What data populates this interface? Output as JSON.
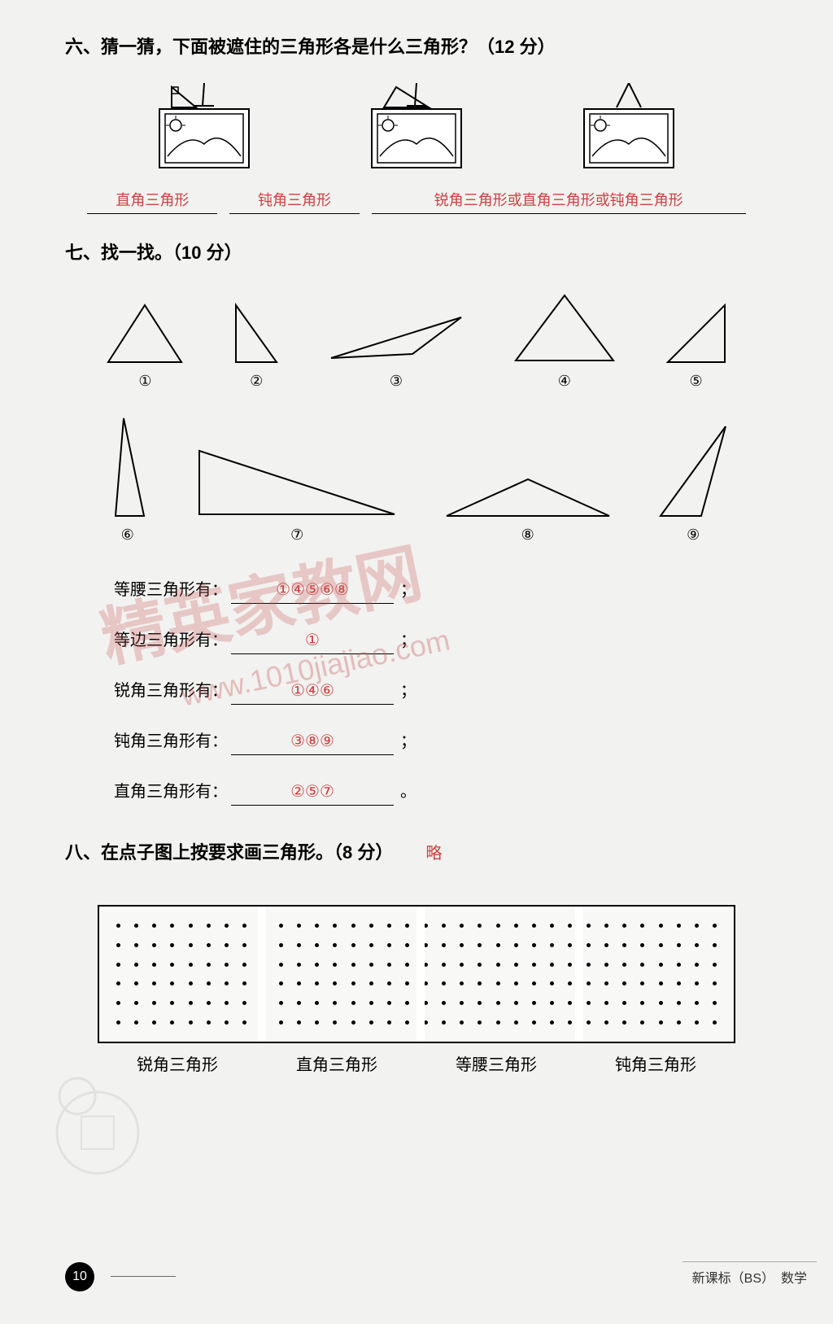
{
  "section6": {
    "heading": "六、猜一猜，下面被遮住的三角形各是什么三角形？（12 分）",
    "answers": [
      "直角三角形",
      "钝角三角形",
      "锐角三角形或直角三角形或钝角三角形"
    ],
    "answer_color": "#d04040"
  },
  "section7": {
    "heading": "七、找一找。（10 分）",
    "triangle_labels_row1": [
      "①",
      "②",
      "③",
      "④",
      "⑤"
    ],
    "triangle_labels_row2": [
      "⑥",
      "⑦",
      "⑧",
      "⑨"
    ],
    "classifications": [
      {
        "label": "等腰三角形有：",
        "answer": "①④⑤⑥⑧",
        "punct": "；"
      },
      {
        "label": "等边三角形有：",
        "answer": "①",
        "punct": "；"
      },
      {
        "label": "锐角三角形有：",
        "answer": "①④⑥",
        "punct": "；"
      },
      {
        "label": "钝角三角形有：",
        "answer": "③⑧⑨",
        "punct": "；"
      },
      {
        "label": "直角三角形有：",
        "answer": "②⑤⑦",
        "punct": "。"
      }
    ],
    "answer_color": "#d04040"
  },
  "section8": {
    "heading": "八、在点子图上按要求画三角形。（8 分）",
    "answer": "略",
    "answer_color": "#d04040",
    "grid": {
      "rows": 6,
      "cols": 34,
      "separators": [
        25,
        50,
        75
      ],
      "border_color": "#000000",
      "dot_color": "#000000"
    },
    "labels": [
      "锐角三角形",
      "直角三角形",
      "等腰三角形",
      "钝角三角形"
    ]
  },
  "footer": {
    "page_number": "10",
    "right_text": "新课标（BS）　数学"
  },
  "watermark": {
    "main": "精英家教网",
    "url": "www.1010jiajiao.com"
  },
  "styling": {
    "background_color": "#f2f2f0",
    "heading_fontsize": 22,
    "body_fontsize": 20,
    "label_fontsize": 20
  }
}
